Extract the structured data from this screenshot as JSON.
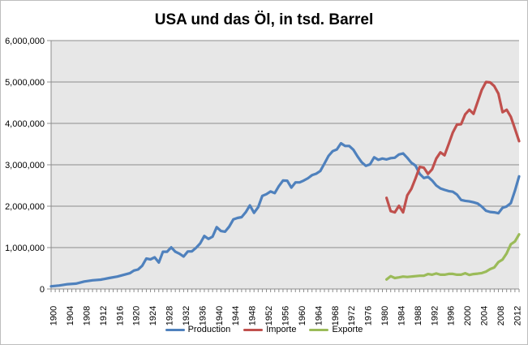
{
  "chart_data": {
    "type": "line",
    "title": "USA und das Öl, in tsd. Barrel",
    "xlabel": "",
    "ylabel": "",
    "xlim": [
      1900,
      2012
    ],
    "ylim": [
      0,
      6000000
    ],
    "x_ticks": [
      1900,
      1904,
      1908,
      1912,
      1916,
      1920,
      1924,
      1928,
      1932,
      1936,
      1940,
      1944,
      1948,
      1952,
      1956,
      1960,
      1964,
      1968,
      1972,
      1976,
      1980,
      1984,
      1988,
      1992,
      1996,
      2000,
      2004,
      2008,
      2012
    ],
    "y_ticks": [
      0,
      1000000,
      2000000,
      3000000,
      4000000,
      5000000,
      6000000
    ],
    "y_tick_labels": [
      "0",
      "1,000,000",
      "2,000,000",
      "3,000,000",
      "4,000,000",
      "5,000,000",
      "6,000,000"
    ],
    "grid": "horizontal",
    "legend_position": "bottom",
    "plot_background": "#e7e7e7",
    "series": [
      {
        "name": "Production",
        "color": "#4f81bd",
        "points": [
          [
            1900,
            65000
          ],
          [
            1902,
            85000
          ],
          [
            1904,
            115000
          ],
          [
            1906,
            130000
          ],
          [
            1908,
            180000
          ],
          [
            1910,
            210000
          ],
          [
            1912,
            225000
          ],
          [
            1914,
            265000
          ],
          [
            1916,
            300000
          ],
          [
            1918,
            355000
          ],
          [
            1919,
            380000
          ],
          [
            1920,
            445000
          ],
          [
            1921,
            470000
          ],
          [
            1922,
            560000
          ],
          [
            1923,
            735000
          ],
          [
            1924,
            715000
          ],
          [
            1925,
            765000
          ],
          [
            1926,
            640000
          ],
          [
            1927,
            900000
          ],
          [
            1928,
            900000
          ],
          [
            1929,
            1005000
          ],
          [
            1930,
            900000
          ],
          [
            1931,
            850000
          ],
          [
            1932,
            785000
          ],
          [
            1933,
            905000
          ],
          [
            1934,
            910000
          ],
          [
            1935,
            995000
          ],
          [
            1936,
            1100000
          ],
          [
            1937,
            1280000
          ],
          [
            1938,
            1210000
          ],
          [
            1939,
            1265000
          ],
          [
            1940,
            1495000
          ],
          [
            1941,
            1400000
          ],
          [
            1942,
            1385000
          ],
          [
            1943,
            1505000
          ],
          [
            1944,
            1680000
          ],
          [
            1945,
            1715000
          ],
          [
            1946,
            1735000
          ],
          [
            1947,
            1855000
          ],
          [
            1948,
            2020000
          ],
          [
            1949,
            1840000
          ],
          [
            1950,
            1975000
          ],
          [
            1951,
            2250000
          ],
          [
            1952,
            2290000
          ],
          [
            1953,
            2355000
          ],
          [
            1954,
            2315000
          ],
          [
            1955,
            2485000
          ],
          [
            1956,
            2620000
          ],
          [
            1957,
            2615000
          ],
          [
            1958,
            2450000
          ],
          [
            1959,
            2575000
          ],
          [
            1960,
            2575000
          ],
          [
            1961,
            2620000
          ],
          [
            1962,
            2675000
          ],
          [
            1963,
            2750000
          ],
          [
            1964,
            2785000
          ],
          [
            1965,
            2850000
          ],
          [
            1966,
            3030000
          ],
          [
            1967,
            3215000
          ],
          [
            1968,
            3330000
          ],
          [
            1969,
            3370000
          ],
          [
            1970,
            3520000
          ],
          [
            1971,
            3455000
          ],
          [
            1972,
            3455000
          ],
          [
            1973,
            3360000
          ],
          [
            1974,
            3200000
          ],
          [
            1975,
            3060000
          ],
          [
            1976,
            2975000
          ],
          [
            1977,
            3010000
          ],
          [
            1978,
            3180000
          ],
          [
            1979,
            3120000
          ],
          [
            1980,
            3150000
          ],
          [
            1981,
            3130000
          ],
          [
            1982,
            3160000
          ],
          [
            1983,
            3170000
          ],
          [
            1984,
            3250000
          ],
          [
            1985,
            3275000
          ],
          [
            1986,
            3170000
          ],
          [
            1987,
            3050000
          ],
          [
            1988,
            2980000
          ],
          [
            1989,
            2780000
          ],
          [
            1990,
            2680000
          ],
          [
            1991,
            2710000
          ],
          [
            1992,
            2620000
          ],
          [
            1993,
            2500000
          ],
          [
            1994,
            2430000
          ],
          [
            1995,
            2395000
          ],
          [
            1996,
            2365000
          ],
          [
            1997,
            2350000
          ],
          [
            1998,
            2280000
          ],
          [
            1999,
            2150000
          ],
          [
            2000,
            2130000
          ],
          [
            2001,
            2115000
          ],
          [
            2002,
            2095000
          ],
          [
            2003,
            2065000
          ],
          [
            2004,
            1990000
          ],
          [
            2005,
            1890000
          ],
          [
            2006,
            1860000
          ],
          [
            2007,
            1850000
          ],
          [
            2008,
            1830000
          ],
          [
            2009,
            1960000
          ],
          [
            2010,
            1995000
          ],
          [
            2011,
            2075000
          ],
          [
            2012,
            2375000
          ],
          [
            2013,
            2720000
          ]
        ]
      },
      {
        "name": "Importe",
        "color": "#c0504d",
        "points": [
          [
            1981,
            2200000
          ],
          [
            1982,
            1880000
          ],
          [
            1983,
            1850000
          ],
          [
            1984,
            2010000
          ],
          [
            1985,
            1850000
          ],
          [
            1986,
            2260000
          ],
          [
            1987,
            2420000
          ],
          [
            1988,
            2670000
          ],
          [
            1989,
            2950000
          ],
          [
            1990,
            2930000
          ],
          [
            1991,
            2780000
          ],
          [
            1992,
            2890000
          ],
          [
            1993,
            3150000
          ],
          [
            1994,
            3300000
          ],
          [
            1995,
            3230000
          ],
          [
            1996,
            3500000
          ],
          [
            1997,
            3780000
          ],
          [
            1998,
            3970000
          ],
          [
            1999,
            3980000
          ],
          [
            2000,
            4220000
          ],
          [
            2001,
            4330000
          ],
          [
            2002,
            4230000
          ],
          [
            2003,
            4520000
          ],
          [
            2004,
            4810000
          ],
          [
            2005,
            5000000
          ],
          [
            2006,
            4990000
          ],
          [
            2007,
            4900000
          ],
          [
            2008,
            4720000
          ],
          [
            2009,
            4270000
          ],
          [
            2010,
            4330000
          ],
          [
            2011,
            4160000
          ],
          [
            2012,
            3870000
          ],
          [
            2013,
            3570000
          ]
        ]
      },
      {
        "name": "Exporte",
        "color": "#9bbb59",
        "points": [
          [
            1981,
            230000
          ],
          [
            1982,
            310000
          ],
          [
            1983,
            265000
          ],
          [
            1984,
            280000
          ],
          [
            1985,
            300000
          ],
          [
            1986,
            290000
          ],
          [
            1987,
            300000
          ],
          [
            1988,
            310000
          ],
          [
            1989,
            320000
          ],
          [
            1990,
            320000
          ],
          [
            1991,
            360000
          ],
          [
            1992,
            345000
          ],
          [
            1993,
            375000
          ],
          [
            1994,
            345000
          ],
          [
            1995,
            345000
          ],
          [
            1996,
            365000
          ],
          [
            1997,
            365000
          ],
          [
            1998,
            345000
          ],
          [
            1999,
            345000
          ],
          [
            2000,
            380000
          ],
          [
            2001,
            340000
          ],
          [
            2002,
            360000
          ],
          [
            2003,
            370000
          ],
          [
            2004,
            385000
          ],
          [
            2005,
            420000
          ],
          [
            2006,
            480000
          ],
          [
            2007,
            520000
          ],
          [
            2008,
            650000
          ],
          [
            2009,
            710000
          ],
          [
            2010,
            860000
          ],
          [
            2011,
            1080000
          ],
          [
            2012,
            1150000
          ],
          [
            2013,
            1320000
          ]
        ]
      }
    ]
  }
}
